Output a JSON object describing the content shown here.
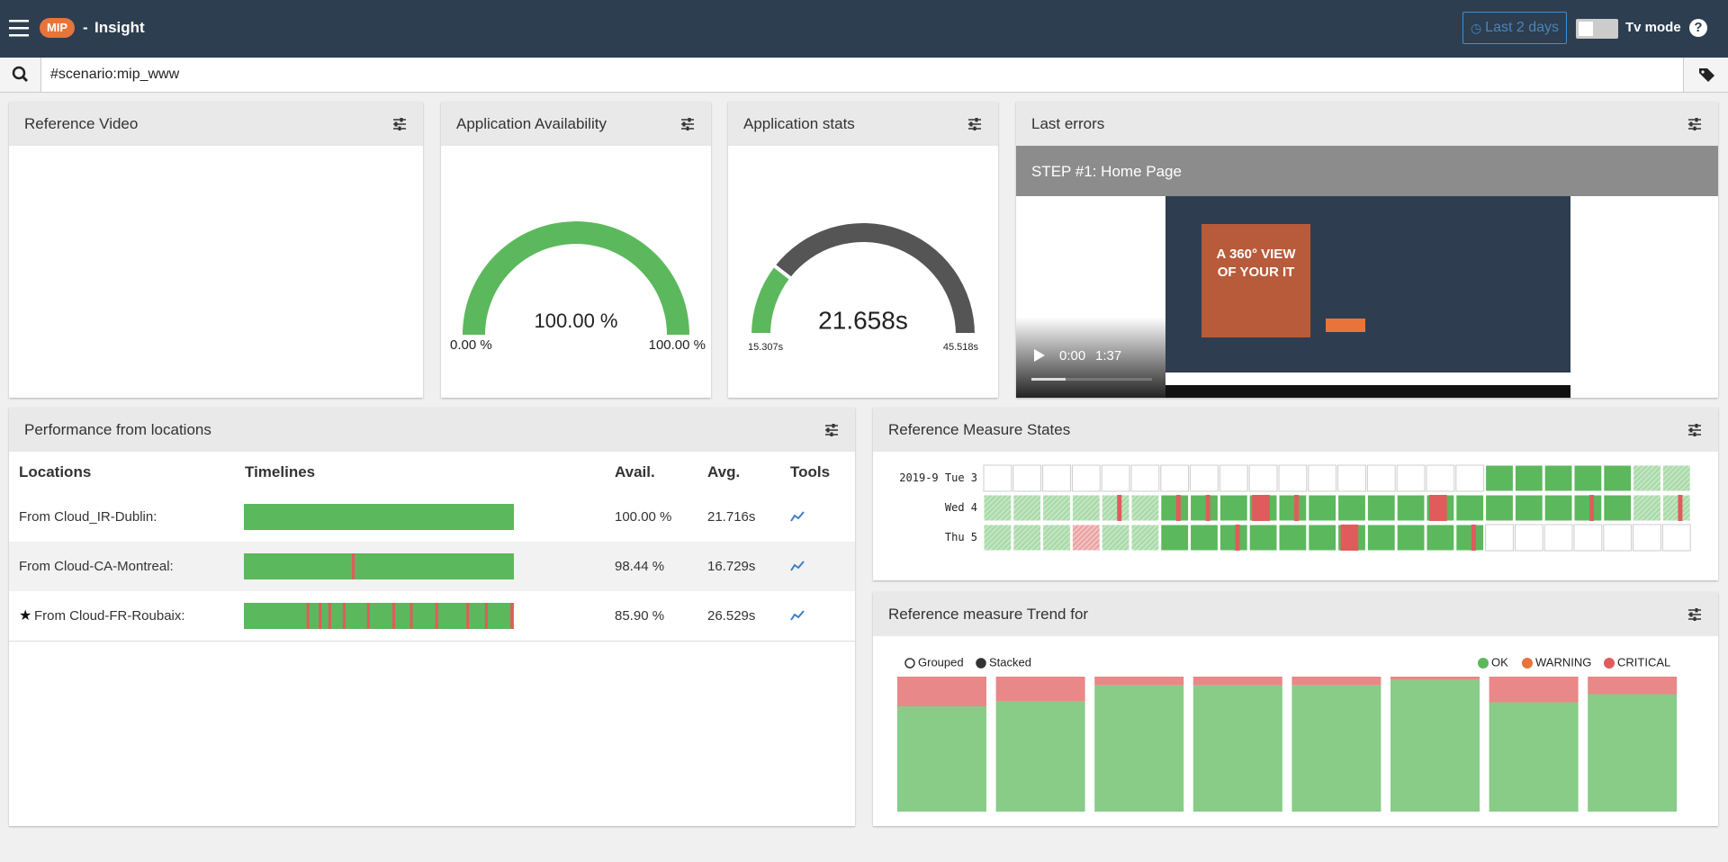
{
  "header": {
    "badge": "MIP",
    "separator": "-",
    "title": "Insight",
    "time_range": "Last 2 days",
    "tv_mode": "Tv mode",
    "help": "?"
  },
  "search": {
    "query": "#scenario:mip_www"
  },
  "reference_video": {
    "title": "Reference Video"
  },
  "availability": {
    "title": "Application Availability",
    "value": 100,
    "min": 0,
    "max": 100,
    "value_label": "100.00 %",
    "min_label": "0.00 %",
    "max_label": "100.00 %",
    "color": "#5cb85c"
  },
  "stats": {
    "title": "Application stats",
    "value": 21.658,
    "min": 15.307,
    "max": 45.518,
    "value_label": "21.658s",
    "min_label": "15.307s",
    "max_label": "45.518s",
    "color": "#5cb85c",
    "rest_color": "#555555"
  },
  "last_errors": {
    "title": "Last errors",
    "step": "STEP #1: Home Page",
    "current_time": "0:00",
    "duration": "1:37",
    "screenshot": {
      "headline": "A 360° VIEW OF YOUR IT"
    }
  },
  "locations": {
    "title": "Performance from locations",
    "columns": [
      "Locations",
      "Timelines",
      "Avail.",
      "Avg.",
      "Tools"
    ],
    "rows": [
      {
        "location": "From Cloud_IR-Dublin:",
        "avail": "100.00 %",
        "avg": "21.716s",
        "failures": []
      },
      {
        "location": "From Cloud-CA-Montreal:",
        "avail": "98.44 %",
        "avg": "16.729s",
        "failures": [
          0.405
        ]
      },
      {
        "location": "From Cloud-FR-Roubaix:",
        "avail": "85.90 %",
        "avg": "26.529s",
        "starred": true,
        "failures": [
          0.237,
          0.282,
          0.318,
          0.371,
          0.461,
          0.555,
          0.62,
          0.714,
          0.829,
          0.898,
          0.992
        ]
      }
    ]
  },
  "states": {
    "title": "Reference Measure States",
    "rows": [
      {
        "label": "2019-9 Tue 3",
        "cells": [
          "none",
          "none",
          "none",
          "none",
          "none",
          "none",
          "none",
          "none",
          "none",
          "none",
          "none",
          "none",
          "none",
          "none",
          "none",
          "none",
          "none",
          "ok",
          "ok",
          "ok",
          "ok",
          "ok",
          "partial",
          "partial"
        ]
      },
      {
        "label": "Wed 4",
        "cells": [
          "partial",
          "partial",
          "partial",
          "partial",
          "mixed-partial",
          "partial",
          "mixed",
          "mixed",
          "ok",
          "error",
          "mixed",
          "ok",
          "ok",
          "ok",
          "ok",
          "error",
          "ok",
          "ok",
          "ok",
          "ok",
          "mixed",
          "ok",
          "partial",
          "mixed-partial"
        ]
      },
      {
        "label": "Thu 5",
        "cells": [
          "partial",
          "partial",
          "partial",
          "warn",
          "partial",
          "partial",
          "ok",
          "ok",
          "mixed",
          "ok",
          "ok",
          "ok",
          "error",
          "ok",
          "ok",
          "ok",
          "mixed",
          "none",
          "none",
          "none",
          "none",
          "none",
          "none",
          "none"
        ]
      }
    ]
  },
  "trend": {
    "type": "bar",
    "title": "Reference measure Trend for",
    "modes": [
      "Grouped",
      "Stacked"
    ],
    "mode": "Stacked",
    "series": [
      {
        "name": "OK",
        "color": "#5cb85c",
        "bar_color": "#88cc88",
        "values": [
          78,
          82,
          93.5,
          93.5,
          93.5,
          97.5,
          81,
          87
        ]
      },
      {
        "name": "WARNING",
        "color": "#e8743b",
        "bar_color": "#f0a070",
        "values": [
          0,
          0,
          0,
          0,
          0,
          0,
          0,
          0
        ]
      },
      {
        "name": "CRITICAL",
        "color": "#e05c5c",
        "bar_color": "#e88888",
        "values": [
          22,
          18,
          6.5,
          6.5,
          6.5,
          2.5,
          19,
          13
        ]
      }
    ]
  }
}
